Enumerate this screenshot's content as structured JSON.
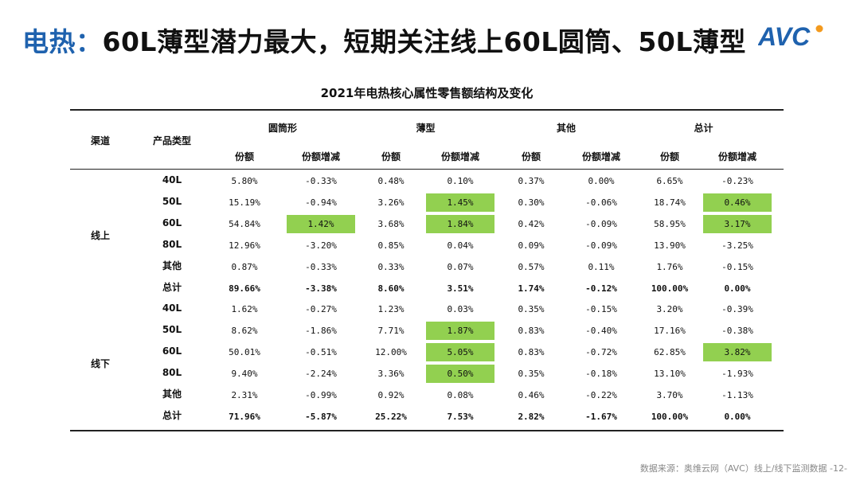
{
  "title": {
    "accent": "电热：",
    "rest": "60L薄型潜力最大，短期关注线上60L圆筒、50L薄型"
  },
  "logo": {
    "text": "AVC"
  },
  "table": {
    "title": "2021年电热核心属性零售额结构及变化",
    "headers": {
      "channel": "渠道",
      "product": "产品类型",
      "groups": [
        "圆筒形",
        "薄型",
        "其他",
        "总计"
      ],
      "share": "份额",
      "share_change": "份额增减"
    },
    "sections": [
      {
        "channel": "线上",
        "rows": [
          {
            "type": "40L",
            "values": [
              "5.80%",
              "-0.33%",
              "0.48%",
              "0.10%",
              "0.37%",
              "0.00%",
              "6.65%",
              "-0.23%"
            ],
            "highlight": [
              false,
              false,
              false,
              false,
              false,
              false,
              false,
              false
            ],
            "bold": false
          },
          {
            "type": "50L",
            "values": [
              "15.19%",
              "-0.94%",
              "3.26%",
              "1.45%",
              "0.30%",
              "-0.06%",
              "18.74%",
              "0.46%"
            ],
            "highlight": [
              false,
              false,
              false,
              true,
              false,
              false,
              false,
              true
            ],
            "bold": false
          },
          {
            "type": "60L",
            "values": [
              "54.84%",
              "1.42%",
              "3.68%",
              "1.84%",
              "0.42%",
              "-0.09%",
              "58.95%",
              "3.17%"
            ],
            "highlight": [
              false,
              true,
              false,
              true,
              false,
              false,
              false,
              true
            ],
            "bold": false
          },
          {
            "type": "80L",
            "values": [
              "12.96%",
              "-3.20%",
              "0.85%",
              "0.04%",
              "0.09%",
              "-0.09%",
              "13.90%",
              "-3.25%"
            ],
            "highlight": [
              false,
              false,
              false,
              false,
              false,
              false,
              false,
              false
            ],
            "bold": false
          },
          {
            "type": "其他",
            "values": [
              "0.87%",
              "-0.33%",
              "0.33%",
              "0.07%",
              "0.57%",
              "0.11%",
              "1.76%",
              "-0.15%"
            ],
            "highlight": [
              false,
              false,
              false,
              false,
              false,
              false,
              false,
              false
            ],
            "bold": false
          },
          {
            "type": "总计",
            "values": [
              "89.66%",
              "-3.38%",
              "8.60%",
              "3.51%",
              "1.74%",
              "-0.12%",
              "100.00%",
              "0.00%"
            ],
            "highlight": [
              false,
              false,
              false,
              false,
              false,
              false,
              false,
              false
            ],
            "bold": true
          }
        ]
      },
      {
        "channel": "线下",
        "rows": [
          {
            "type": "40L",
            "values": [
              "1.62%",
              "-0.27%",
              "1.23%",
              "0.03%",
              "0.35%",
              "-0.15%",
              "3.20%",
              "-0.39%"
            ],
            "highlight": [
              false,
              false,
              false,
              false,
              false,
              false,
              false,
              false
            ],
            "bold": false
          },
          {
            "type": "50L",
            "values": [
              "8.62%",
              "-1.86%",
              "7.71%",
              "1.87%",
              "0.83%",
              "-0.40%",
              "17.16%",
              "-0.38%"
            ],
            "highlight": [
              false,
              false,
              false,
              true,
              false,
              false,
              false,
              false
            ],
            "bold": false
          },
          {
            "type": "60L",
            "values": [
              "50.01%",
              "-0.51%",
              "12.00%",
              "5.05%",
              "0.83%",
              "-0.72%",
              "62.85%",
              "3.82%"
            ],
            "highlight": [
              false,
              false,
              false,
              true,
              false,
              false,
              false,
              true
            ],
            "bold": false
          },
          {
            "type": "80L",
            "values": [
              "9.40%",
              "-2.24%",
              "3.36%",
              "0.50%",
              "0.35%",
              "-0.18%",
              "13.10%",
              "-1.93%"
            ],
            "highlight": [
              false,
              false,
              false,
              true,
              false,
              false,
              false,
              false
            ],
            "bold": false
          },
          {
            "type": "其他",
            "values": [
              "2.31%",
              "-0.99%",
              "0.92%",
              "0.08%",
              "0.46%",
              "-0.22%",
              "3.70%",
              "-1.13%"
            ],
            "highlight": [
              false,
              false,
              false,
              false,
              false,
              false,
              false,
              false
            ],
            "bold": false
          },
          {
            "type": "总计",
            "values": [
              "71.96%",
              "-5.87%",
              "25.22%",
              "7.53%",
              "2.82%",
              "-1.67%",
              "100.00%",
              "0.00%"
            ],
            "highlight": [
              false,
              false,
              false,
              false,
              false,
              false,
              false,
              false
            ],
            "bold": true
          }
        ]
      }
    ]
  },
  "footer": "数据来源：奥维云网（AVC）线上/线下监测数据 -12-",
  "colors": {
    "accent": "#1f62ae",
    "highlight": "#92d050",
    "logo_orange": "#f39a1e"
  }
}
